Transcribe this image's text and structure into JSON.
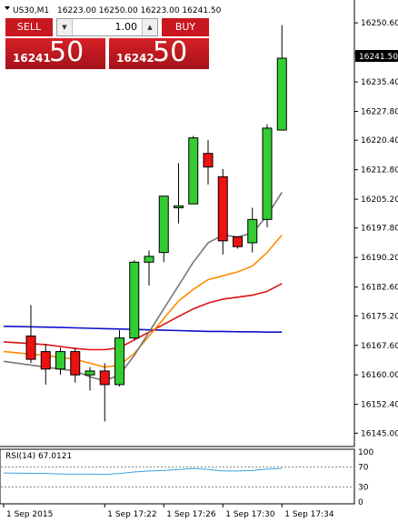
{
  "header": {
    "symbol": "US30,M1",
    "ohlc": "16223.00 16250.00 16223.00 16241.50"
  },
  "trade_panel": {
    "sell_label": "SELL",
    "buy_label": "BUY",
    "lot_value": "1.00",
    "sell_price_small": "16241",
    "sell_price_big": "50",
    "buy_price_small": "16242",
    "buy_price_big": "50"
  },
  "colors": {
    "bull": "#33cc33",
    "bear": "#ee1111",
    "ma_blue": "#1010cc",
    "ma_red": "#dd1111",
    "ma_orange": "#ff8c00",
    "ma_gray": "#777777",
    "rsi_line": "#3aa0e0",
    "price_marker_bg": "#000000"
  },
  "chart_data": [
    {
      "type": "candlestick",
      "ylim": [
        16142.5,
        16252.5
      ],
      "ytick_labels": [
        "16250.60",
        "16242.70",
        "16235.40",
        "16227.80",
        "16220.40",
        "16212.80",
        "16205.20",
        "16197.80",
        "16190.20",
        "16182.60",
        "16175.20",
        "16167.60",
        "16160.00",
        "16152.40",
        "16145.00"
      ],
      "ytick_values": [
        16250.6,
        16242.7,
        16235.4,
        16227.8,
        16220.4,
        16212.8,
        16205.2,
        16197.8,
        16190.2,
        16182.6,
        16175.2,
        16167.6,
        16160.0,
        16152.4,
        16145.0
      ],
      "current_price_label": "16241.50",
      "current_price": 16241.5,
      "xtick_labels": [
        "1 Sep 2015",
        "1 Sep 17:22",
        "1 Sep 17:26",
        "1 Sep 17:30",
        "1 Sep 17:34"
      ],
      "xtick_index": [
        0,
        5,
        9,
        13,
        17
      ],
      "candles": [
        {
          "o": 16170.0,
          "h": 16178.0,
          "l": 16163.0,
          "c": 16164.0
        },
        {
          "o": 16166.0,
          "h": 16168.0,
          "l": 16157.5,
          "c": 16161.5
        },
        {
          "o": 16161.5,
          "h": 16167.0,
          "l": 16160.0,
          "c": 16166.0
        },
        {
          "o": 16166.0,
          "h": 16167.0,
          "l": 16158.0,
          "c": 16160.0
        },
        {
          "o": 16160.0,
          "h": 16162.0,
          "l": 16156.0,
          "c": 16161.0
        },
        {
          "o": 16161.0,
          "h": 16163.0,
          "l": 16148.0,
          "c": 16157.5
        },
        {
          "o": 16157.5,
          "h": 16171.5,
          "l": 16157.0,
          "c": 16169.5
        },
        {
          "o": 16169.5,
          "h": 16189.5,
          "l": 16169.0,
          "c": 16189.0
        },
        {
          "o": 16189.0,
          "h": 16192.0,
          "l": 16183.0,
          "c": 16190.5
        },
        {
          "o": 16191.5,
          "h": 16206.0,
          "l": 16189.0,
          "c": 16206.0
        },
        {
          "o": 16203.0,
          "h": 16214.5,
          "l": 16199.0,
          "c": 16203.5
        },
        {
          "o": 16204.0,
          "h": 16221.5,
          "l": 16204.0,
          "c": 16221.0
        },
        {
          "o": 16217.0,
          "h": 16220.5,
          "l": 16209.0,
          "c": 16213.5
        },
        {
          "o": 16211.0,
          "h": 16213.0,
          "l": 16191.0,
          "c": 16194.5
        },
        {
          "o": 16195.5,
          "h": 16195.5,
          "l": 16192.5,
          "c": 16193.0
        },
        {
          "o": 16194.0,
          "h": 16203.0,
          "l": 16191.5,
          "c": 16200.0
        },
        {
          "o": 16200.0,
          "h": 16224.5,
          "l": 16198.0,
          "c": 16223.5
        },
        {
          "o": 16223.0,
          "h": 16250.0,
          "l": 16223.0,
          "c": 16241.5
        }
      ],
      "moving_averages": [
        {
          "color": "#1010cc",
          "values": [
            16172.5,
            16172.3,
            16172.2,
            16172.1,
            16172.0,
            16171.9,
            16171.8,
            16171.7,
            16171.6,
            16171.5,
            16171.4,
            16171.3,
            16171.2,
            16171.2,
            16171.1,
            16171.1,
            16171.0,
            16171.0
          ]
        },
        {
          "color": "#dd1111",
          "values": [
            16168.5,
            16167.8,
            16167.3,
            16166.8,
            16166.5,
            16166.5,
            16167.0,
            16169.0,
            16171.0,
            16173.0,
            16175.0,
            16177.0,
            16178.5,
            16179.5,
            16180.0,
            16180.5,
            16181.5,
            16183.5
          ]
        },
        {
          "color": "#ff8c00",
          "values": [
            16166.0,
            16165.0,
            16164.5,
            16164.0,
            16163.0,
            16162.0,
            16162.5,
            16165.5,
            16170.0,
            16174.5,
            16179.0,
            16182.0,
            16184.5,
            16185.5,
            16186.5,
            16188.0,
            16191.5,
            16196.0
          ]
        },
        {
          "color": "#777777",
          "values": [
            16163.5,
            16162.0,
            16161.5,
            16161.0,
            16159.5,
            16158.5,
            16160.0,
            16165.0,
            16171.0,
            16177.0,
            16183.0,
            16189.0,
            16194.0,
            16196.0,
            16195.5,
            16196.5,
            16201.0,
            16207.0
          ]
        }
      ]
    },
    {
      "type": "line",
      "title": "RSI(14) 67.0121",
      "ylim": [
        0,
        100
      ],
      "ytick_labels": [
        "100",
        "70",
        "30",
        "0"
      ],
      "ytick_values": [
        100,
        70,
        30,
        0
      ],
      "levels": [
        70,
        30
      ],
      "values": [
        58,
        57,
        56,
        56,
        56,
        55,
        57,
        60,
        62,
        63,
        65,
        67,
        65,
        62,
        62,
        63,
        66,
        67
      ]
    }
  ]
}
